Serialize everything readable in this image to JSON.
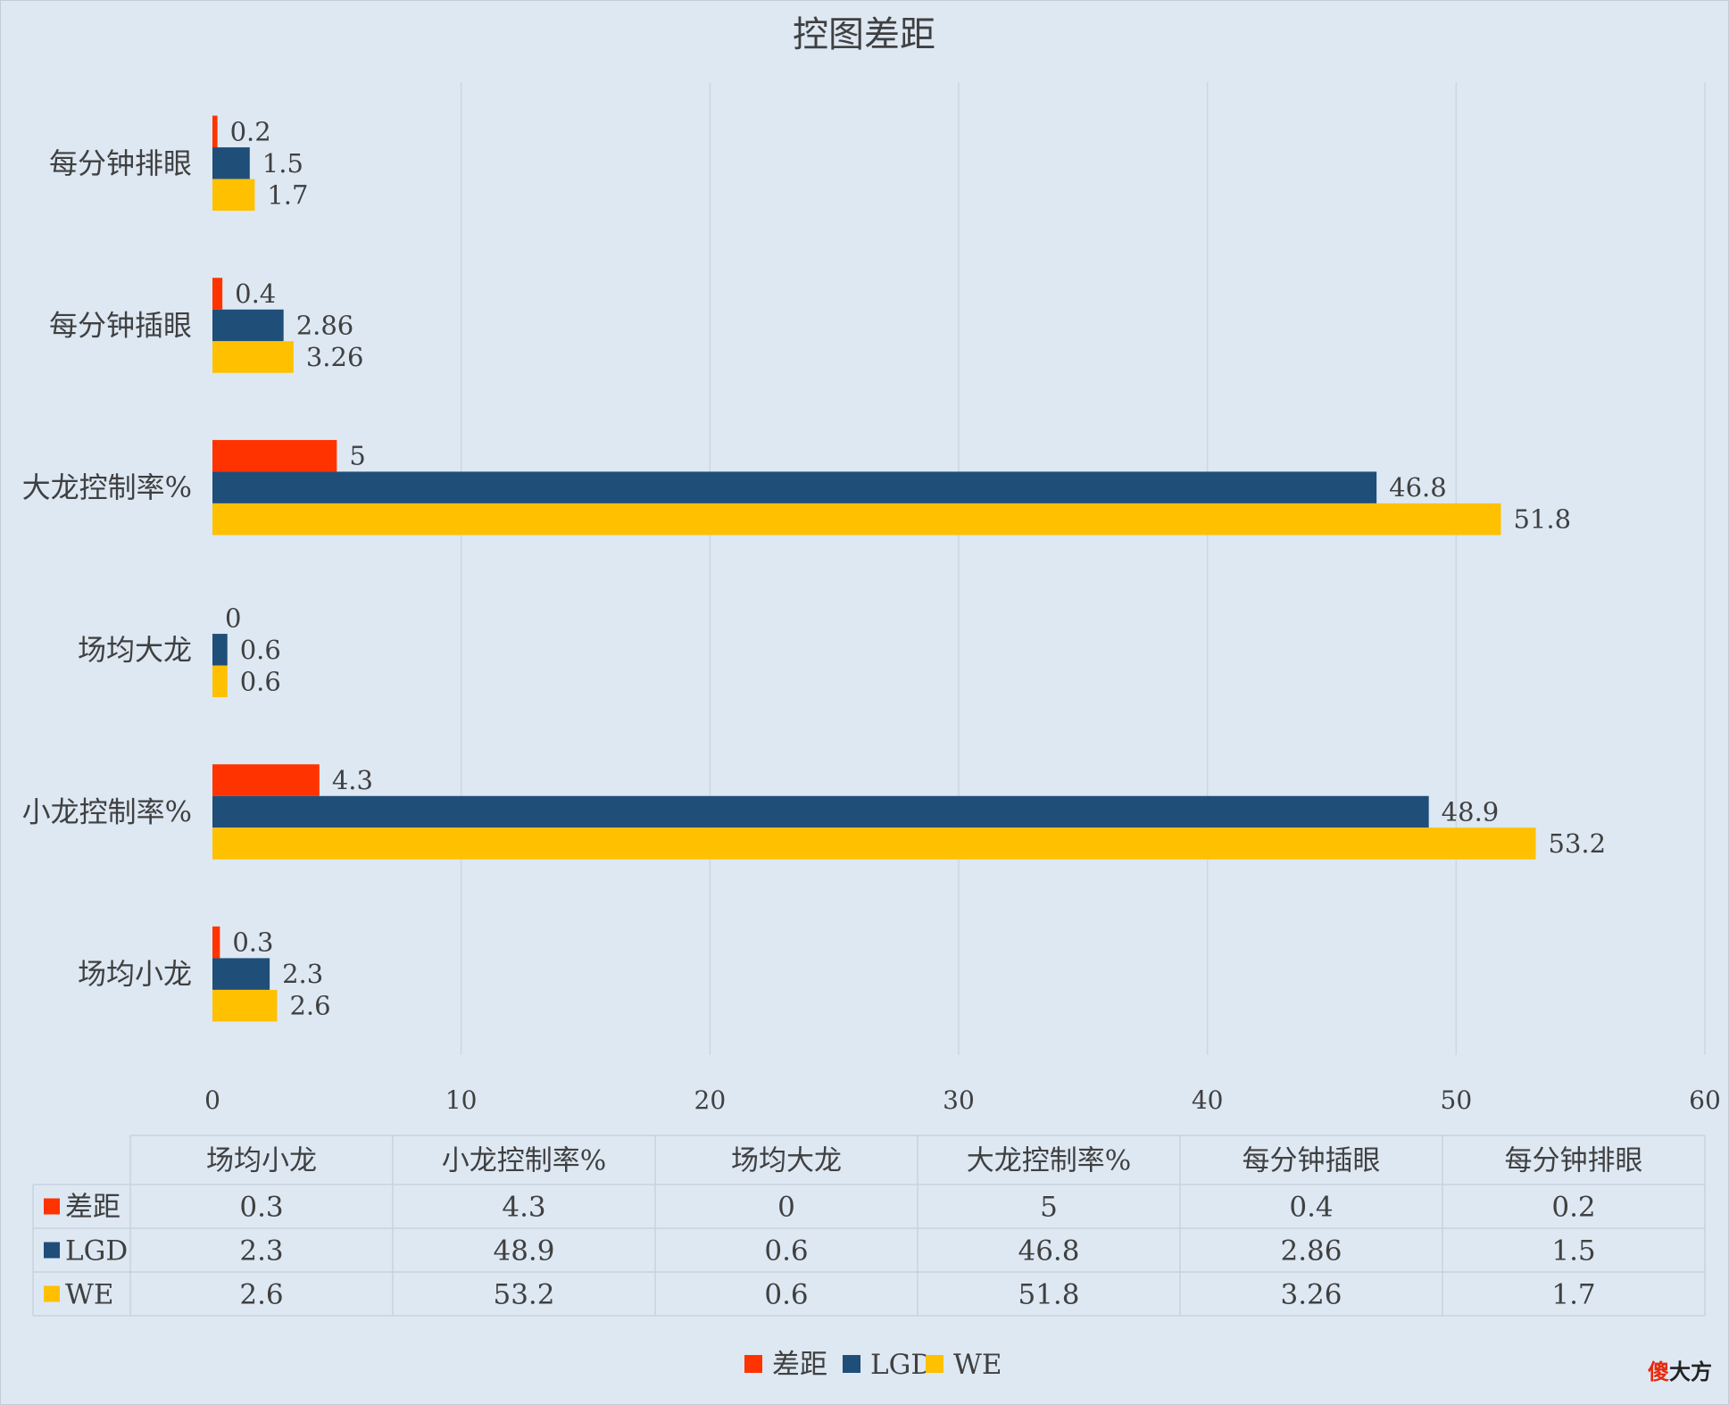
{
  "chart_data": {
    "type": "bar",
    "orientation": "horizontal",
    "title": "控图差距",
    "categories": [
      "场均小龙",
      "小龙控制率%",
      "场均大龙",
      "大龙控制率%",
      "每分钟插眼",
      "每分钟排眼"
    ],
    "series": [
      {
        "name": "差距",
        "color": "#ff3300",
        "values": [
          0.3,
          4.3,
          0,
          5,
          0.4,
          0.2
        ],
        "labels": [
          "0.3",
          "4.3",
          "0",
          "5",
          "0.4",
          "0.2"
        ]
      },
      {
        "name": "LGD",
        "color": "#1f4e79",
        "values": [
          2.3,
          48.9,
          0.6,
          46.8,
          2.86,
          1.5
        ],
        "labels": [
          "2.3",
          "48.9",
          "0.6",
          "46.8",
          "2.86",
          "1.5"
        ]
      },
      {
        "name": "WE",
        "color": "#ffc000",
        "values": [
          2.6,
          53.2,
          0.6,
          51.8,
          3.26,
          1.7
        ],
        "labels": [
          "2.6",
          "53.2",
          "0.6",
          "51.8",
          "3.26",
          "1.7"
        ]
      }
    ],
    "xlim": [
      0,
      60
    ],
    "xticks": [
      "0",
      "10",
      "20",
      "30",
      "40",
      "50",
      "60"
    ],
    "grid": true,
    "legend_position": "bottom",
    "data_table": true
  },
  "watermark": {
    "part1": "傻",
    "part2": "大方",
    "color1": "#e8290b",
    "color2": "#222222"
  }
}
